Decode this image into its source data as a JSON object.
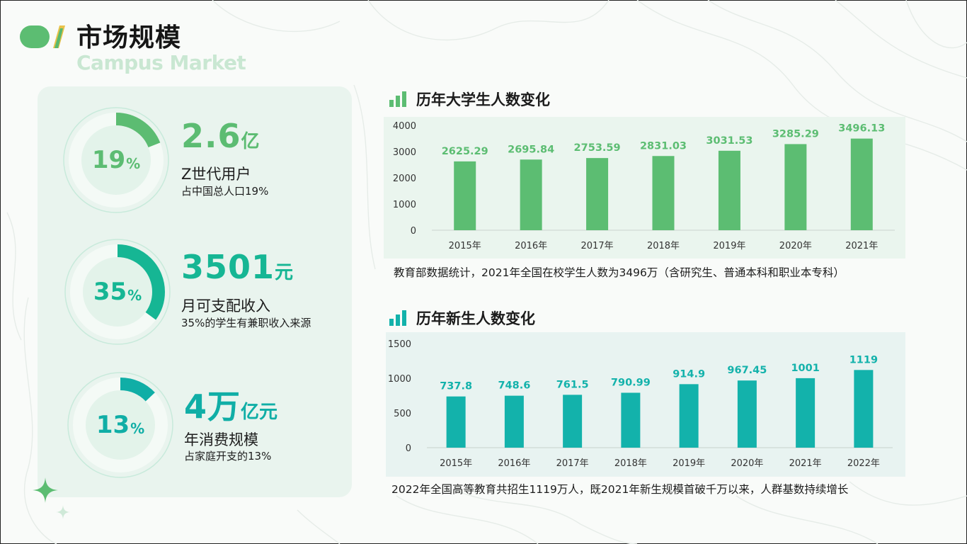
{
  "page": {
    "title": "市场规模",
    "subtitle": "Campus Market"
  },
  "stats": [
    {
      "percent": "19",
      "percent_sign": "%",
      "value": "2.6",
      "unit": "亿",
      "title": "Z世代用户",
      "desc": "占中国总人口19%",
      "fraction": 0.19,
      "color": "#5cbc72"
    },
    {
      "percent": "35",
      "percent_sign": "%",
      "value": "3501",
      "unit": "元",
      "title": "月可支配收入",
      "desc": "35%的学生有兼职收入来源",
      "fraction": 0.35,
      "color": "#16b694"
    },
    {
      "percent": "13",
      "percent_sign": "%",
      "value": "4万",
      "unit": "亿元",
      "title": "年消费规模",
      "desc": "占家庭开支的13%",
      "fraction": 0.13,
      "color": "#10aea6"
    }
  ],
  "charts": {
    "students": {
      "heading": "历年大学生人数变化",
      "caption": "教育部数据统计，2021年全国在校学生人数为3496万（含研究生、普通本科和职业本专科）"
    },
    "freshmen": {
      "heading": "历年新生人数变化",
      "caption": "2022年全国高等教育共招生1119万人，既2021年新生规模首破千万以来，人群基数持续增长"
    }
  },
  "chart_data": [
    {
      "type": "bar",
      "title": "历年大学生人数变化",
      "categories": [
        "2015年",
        "2016年",
        "2017年",
        "2018年",
        "2019年",
        "2020年",
        "2021年"
      ],
      "values": [
        2625.29,
        2695.84,
        2753.59,
        2831.03,
        3031.53,
        3285.29,
        3496.13
      ],
      "labels": [
        "2625.29",
        "2695.84",
        "2753.59",
        "2831.03",
        "3031.53",
        "3285.29",
        "3496.13"
      ],
      "ylim": [
        0,
        4000
      ],
      "yticks": [
        "0",
        "1000",
        "2000",
        "3000",
        "4000"
      ],
      "color": "#5cbd72",
      "grid": false
    },
    {
      "type": "bar",
      "title": "历年新生人数变化",
      "categories": [
        "2015年",
        "2016年",
        "2017年",
        "2018年",
        "2019年",
        "2020年",
        "2021年",
        "2022年"
      ],
      "values": [
        737.8,
        748.6,
        761.5,
        790.99,
        914.9,
        967.45,
        1001,
        1119
      ],
      "labels": [
        "737.8",
        "748.6",
        "761.5",
        "790.99",
        "914.9",
        "967.45",
        "1001",
        "1119"
      ],
      "ylim": [
        0,
        1500
      ],
      "yticks": [
        "0",
        "500",
        "1000",
        "1500"
      ],
      "color": "#13b2ab",
      "grid": false
    }
  ]
}
